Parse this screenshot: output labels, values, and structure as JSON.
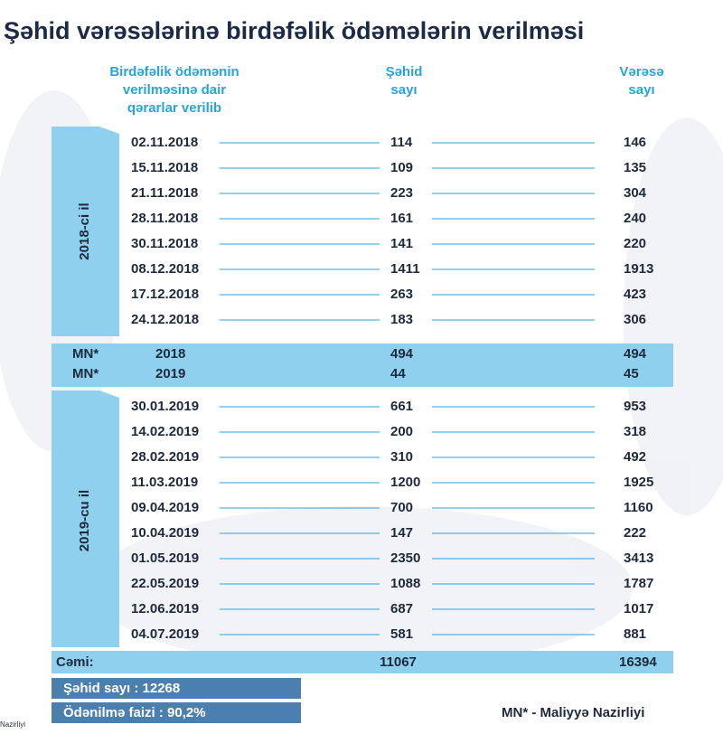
{
  "title": "Şəhid vərəsələrinə birdəfəlik ödəmələrin verilməsi",
  "header": {
    "date": [
      "Birdəfəlik ödəmənin",
      "verilməsinə dair",
      "qərarlar verilib"
    ],
    "shahid": [
      "Şəhid",
      "sayı"
    ],
    "varasa": [
      "Vərəsə",
      "sayı"
    ]
  },
  "groups": [
    {
      "label": "2018-ci il",
      "rows": [
        [
          "02.11.2018",
          114,
          146
        ],
        [
          "15.11.2018",
          109,
          135
        ],
        [
          "21.11.2018",
          223,
          304
        ],
        [
          "28.11.2018",
          161,
          240
        ],
        [
          "30.11.2018",
          141,
          220
        ],
        [
          "08.12.2018",
          1411,
          1913
        ],
        [
          "17.12.2018",
          263,
          423
        ],
        [
          "24.12.2018",
          183,
          306
        ]
      ]
    },
    {
      "label": "2019-cu il",
      "rows": [
        [
          "30.01.2019",
          661,
          953
        ],
        [
          "14.02.2019",
          200,
          318
        ],
        [
          "28.02.2019",
          310,
          492
        ],
        [
          "11.03.2019",
          1200,
          1925
        ],
        [
          "09.04.2019",
          700,
          1160
        ],
        [
          "10.04.2019",
          147,
          222
        ],
        [
          "01.05.2019",
          2350,
          3413
        ],
        [
          "22.05.2019",
          1088,
          1787
        ],
        [
          "12.06.2019",
          687,
          1017
        ],
        [
          "04.07.2019",
          581,
          881
        ]
      ]
    }
  ],
  "mn_rows": [
    [
      "MN*",
      "2018",
      494,
      494
    ],
    [
      "MN*",
      "2019",
      44,
      45
    ]
  ],
  "total": {
    "label": "Cəmi:",
    "shahid": 11067,
    "varasa": 16394
  },
  "footer": {
    "shahid_count": "Şəhid sayı : 12268",
    "payment_rate": "Ödənilmə faizi : 90,2%",
    "note": "MN* - Maliyyə Nazirliyi",
    "corner": "Nazirliyi"
  }
}
